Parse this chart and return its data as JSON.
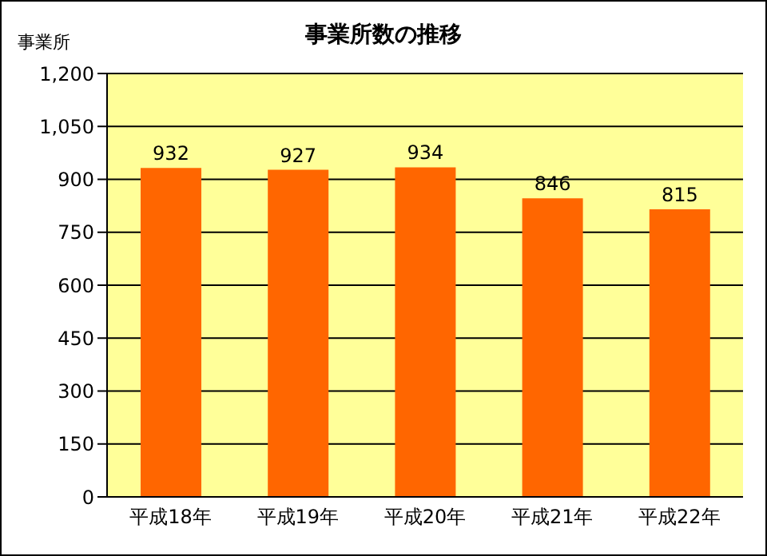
{
  "chart_data": {
    "type": "bar",
    "title": "事業所数の推移",
    "ylabel": "事業所",
    "categories": [
      "平成18年",
      "平成19年",
      "平成20年",
      "平成21年",
      "平成22年"
    ],
    "values": [
      932,
      927,
      934,
      846,
      815
    ],
    "color": "#ff6600",
    "ylim": [
      0,
      1200
    ],
    "yticks": [
      0,
      150,
      300,
      450,
      600,
      750,
      900,
      {
        "value": 1050,
        "label": "1,050"
      },
      {
        "value": 1200,
        "label": "1,200"
      }
    ],
    "grid": "y",
    "data_labels": true
  }
}
